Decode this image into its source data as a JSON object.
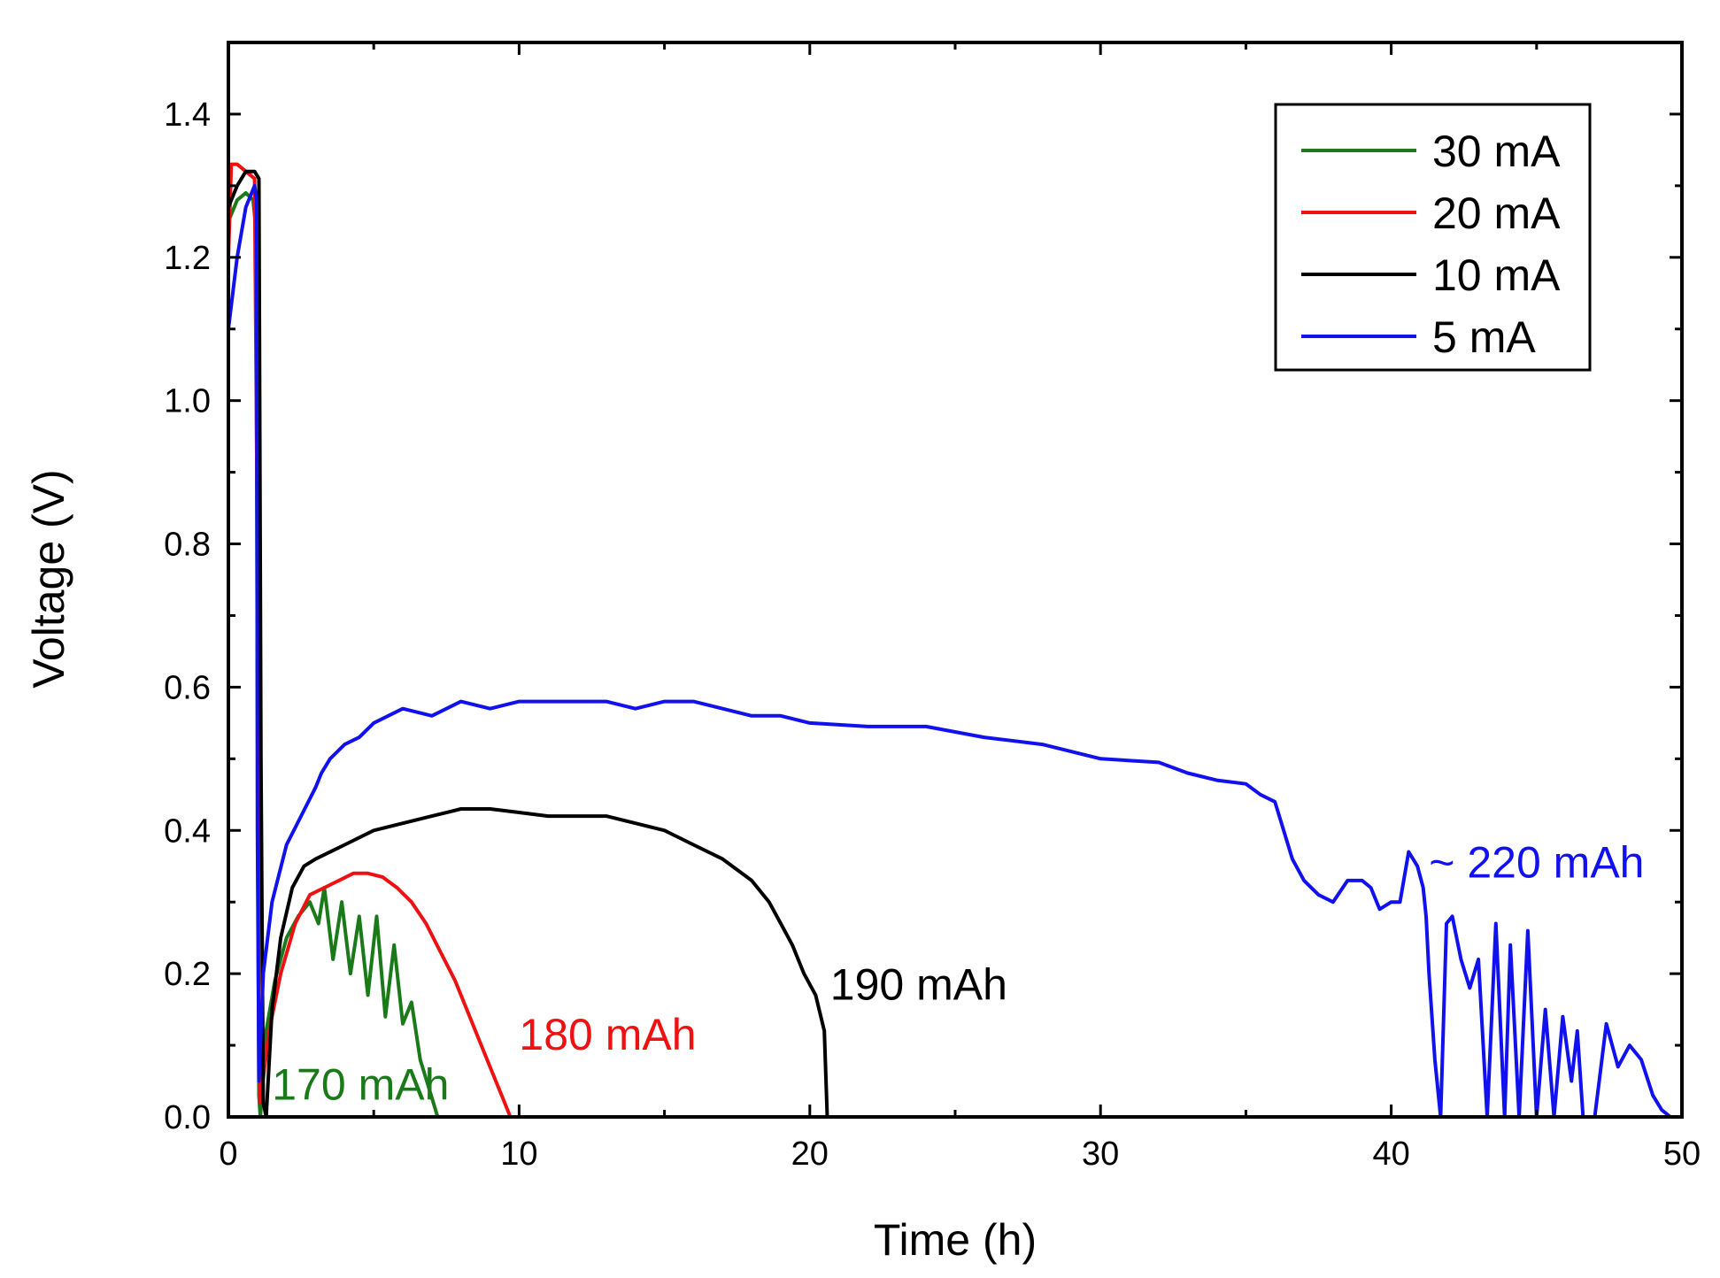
{
  "chart_data": {
    "type": "line",
    "title": "",
    "xlabel": "Time (h)",
    "ylabel": "Voltage (V)",
    "xlim": [
      0,
      50
    ],
    "ylim": [
      0,
      1.5
    ],
    "xticks": [
      0,
      10,
      20,
      30,
      40,
      50
    ],
    "xtick_labels": [
      "0",
      "10",
      "20",
      "30",
      "40",
      "50"
    ],
    "yticks": [
      0,
      0.2,
      0.4,
      0.6,
      0.8,
      1.0,
      1.2,
      1.4
    ],
    "ytick_labels": [
      "0.0",
      "0.2",
      "0.4",
      "0.6",
      "0.8",
      "1.0",
      "1.2",
      "1.4"
    ],
    "grid": false,
    "legend_position": "top-right",
    "series": [
      {
        "name": "30 mA",
        "color": "#1a7a1a",
        "x": [
          0,
          0.3,
          0.6,
          0.85,
          0.95,
          1.02,
          1.05,
          1.1,
          1.3,
          1.6,
          2.0,
          2.4,
          2.8,
          3.1,
          3.3,
          3.6,
          3.9,
          4.2,
          4.5,
          4.8,
          5.1,
          5.4,
          5.7,
          6.0,
          6.3,
          6.6,
          6.9,
          7.2
        ],
        "y": [
          1.25,
          1.28,
          1.29,
          1.28,
          1.24,
          0.3,
          0.03,
          0.0,
          0.12,
          0.19,
          0.25,
          0.28,
          0.3,
          0.27,
          0.32,
          0.22,
          0.3,
          0.2,
          0.28,
          0.17,
          0.28,
          0.14,
          0.24,
          0.13,
          0.16,
          0.08,
          0.04,
          0.0
        ]
      },
      {
        "name": "20 mA",
        "color": "#ee1111",
        "x": [
          0,
          0.1,
          0.3,
          0.6,
          0.9,
          1.0,
          1.05,
          1.1,
          1.4,
          1.8,
          2.3,
          2.8,
          3.3,
          3.8,
          4.3,
          4.8,
          5.3,
          5.8,
          6.3,
          6.8,
          7.3,
          7.8,
          8.3,
          8.8,
          9.2,
          9.5,
          9.7
        ],
        "y": [
          1.2,
          1.33,
          1.33,
          1.32,
          1.31,
          0.8,
          0.1,
          0.02,
          0.12,
          0.2,
          0.27,
          0.31,
          0.32,
          0.33,
          0.34,
          0.34,
          0.335,
          0.32,
          0.3,
          0.27,
          0.23,
          0.19,
          0.14,
          0.09,
          0.05,
          0.02,
          0.0
        ]
      },
      {
        "name": "10 mA",
        "color": "#000000",
        "x": [
          0,
          0.3,
          0.6,
          0.9,
          1.05,
          1.12,
          1.2,
          1.3,
          1.5,
          1.8,
          2.2,
          2.6,
          3.0,
          4.0,
          5.0,
          6.0,
          7.0,
          8.0,
          9.0,
          10.0,
          11.0,
          12.0,
          13.0,
          14.0,
          15.0,
          16.0,
          17.0,
          18.0,
          18.6,
          19.0,
          19.4,
          19.8,
          20.2,
          20.5,
          20.6
        ],
        "y": [
          1.27,
          1.3,
          1.32,
          1.32,
          1.31,
          0.5,
          0.02,
          0.0,
          0.15,
          0.25,
          0.32,
          0.35,
          0.36,
          0.38,
          0.4,
          0.41,
          0.42,
          0.43,
          0.43,
          0.425,
          0.42,
          0.42,
          0.42,
          0.41,
          0.4,
          0.38,
          0.36,
          0.33,
          0.3,
          0.27,
          0.24,
          0.2,
          0.17,
          0.12,
          0.0
        ]
      },
      {
        "name": "5 mA",
        "color": "#1111ee",
        "x": [
          0,
          0.3,
          0.6,
          0.9,
          0.97,
          1.0,
          1.05,
          1.2,
          1.5,
          2.0,
          2.5,
          3.0,
          3.2,
          3.5,
          4.0,
          4.5,
          5.0,
          6.0,
          7.0,
          8.0,
          9.0,
          10.0,
          11.0,
          12.0,
          13.0,
          14.0,
          15.0,
          16.0,
          17.0,
          18.0,
          19.0,
          20.0,
          22.0,
          24.0,
          26.0,
          28.0,
          30.0,
          32.0,
          33.0,
          34.0,
          35.0,
          35.5,
          36.0,
          36.3,
          36.6,
          37.0,
          37.5,
          38.0,
          38.5,
          39.0,
          39.3,
          39.6,
          40.0,
          40.3,
          40.6,
          40.9,
          41.1,
          41.2,
          41.3,
          41.5,
          41.7,
          41.9,
          42.1,
          42.4,
          42.7,
          43.0,
          43.3,
          43.6,
          43.9,
          44.1,
          44.4,
          44.7,
          45.0,
          45.3,
          45.6,
          45.9,
          46.2,
          46.4,
          46.6,
          47.0,
          47.4,
          47.8,
          48.2,
          48.6,
          49.0,
          49.3,
          49.6
        ],
        "y": [
          1.1,
          1.2,
          1.27,
          1.3,
          1.28,
          0.4,
          0.05,
          0.2,
          0.3,
          0.38,
          0.42,
          0.46,
          0.48,
          0.5,
          0.52,
          0.53,
          0.55,
          0.57,
          0.56,
          0.58,
          0.57,
          0.58,
          0.58,
          0.58,
          0.58,
          0.57,
          0.58,
          0.58,
          0.57,
          0.56,
          0.56,
          0.55,
          0.545,
          0.545,
          0.53,
          0.52,
          0.5,
          0.495,
          0.48,
          0.47,
          0.465,
          0.45,
          0.44,
          0.4,
          0.36,
          0.33,
          0.31,
          0.3,
          0.33,
          0.33,
          0.32,
          0.29,
          0.3,
          0.3,
          0.37,
          0.35,
          0.32,
          0.28,
          0.2,
          0.08,
          0.0,
          0.27,
          0.28,
          0.22,
          0.18,
          0.22,
          0.0,
          0.27,
          0.0,
          0.24,
          0.0,
          0.26,
          0.0,
          0.15,
          0.0,
          0.14,
          0.05,
          0.12,
          0.0,
          0.0,
          0.13,
          0.07,
          0.1,
          0.08,
          0.03,
          0.01,
          0.0
        ]
      }
    ],
    "annotations": [
      {
        "text": "170 mAh",
        "series": "30 mA",
        "color": "#1a7a1a",
        "x": 1.5,
        "y": 0.045
      },
      {
        "text": "180 mAh",
        "series": "20 mA",
        "color": "#ee1111",
        "x": 10.0,
        "y": 0.115
      },
      {
        "text": "190 mAh",
        "series": "10 mA",
        "color": "#000000",
        "x": 20.7,
        "y": 0.185
      },
      {
        "text": "~ 220 mAh",
        "series": "5 mA",
        "color": "#1111ee",
        "x": 41.3,
        "y": 0.355
      }
    ]
  }
}
